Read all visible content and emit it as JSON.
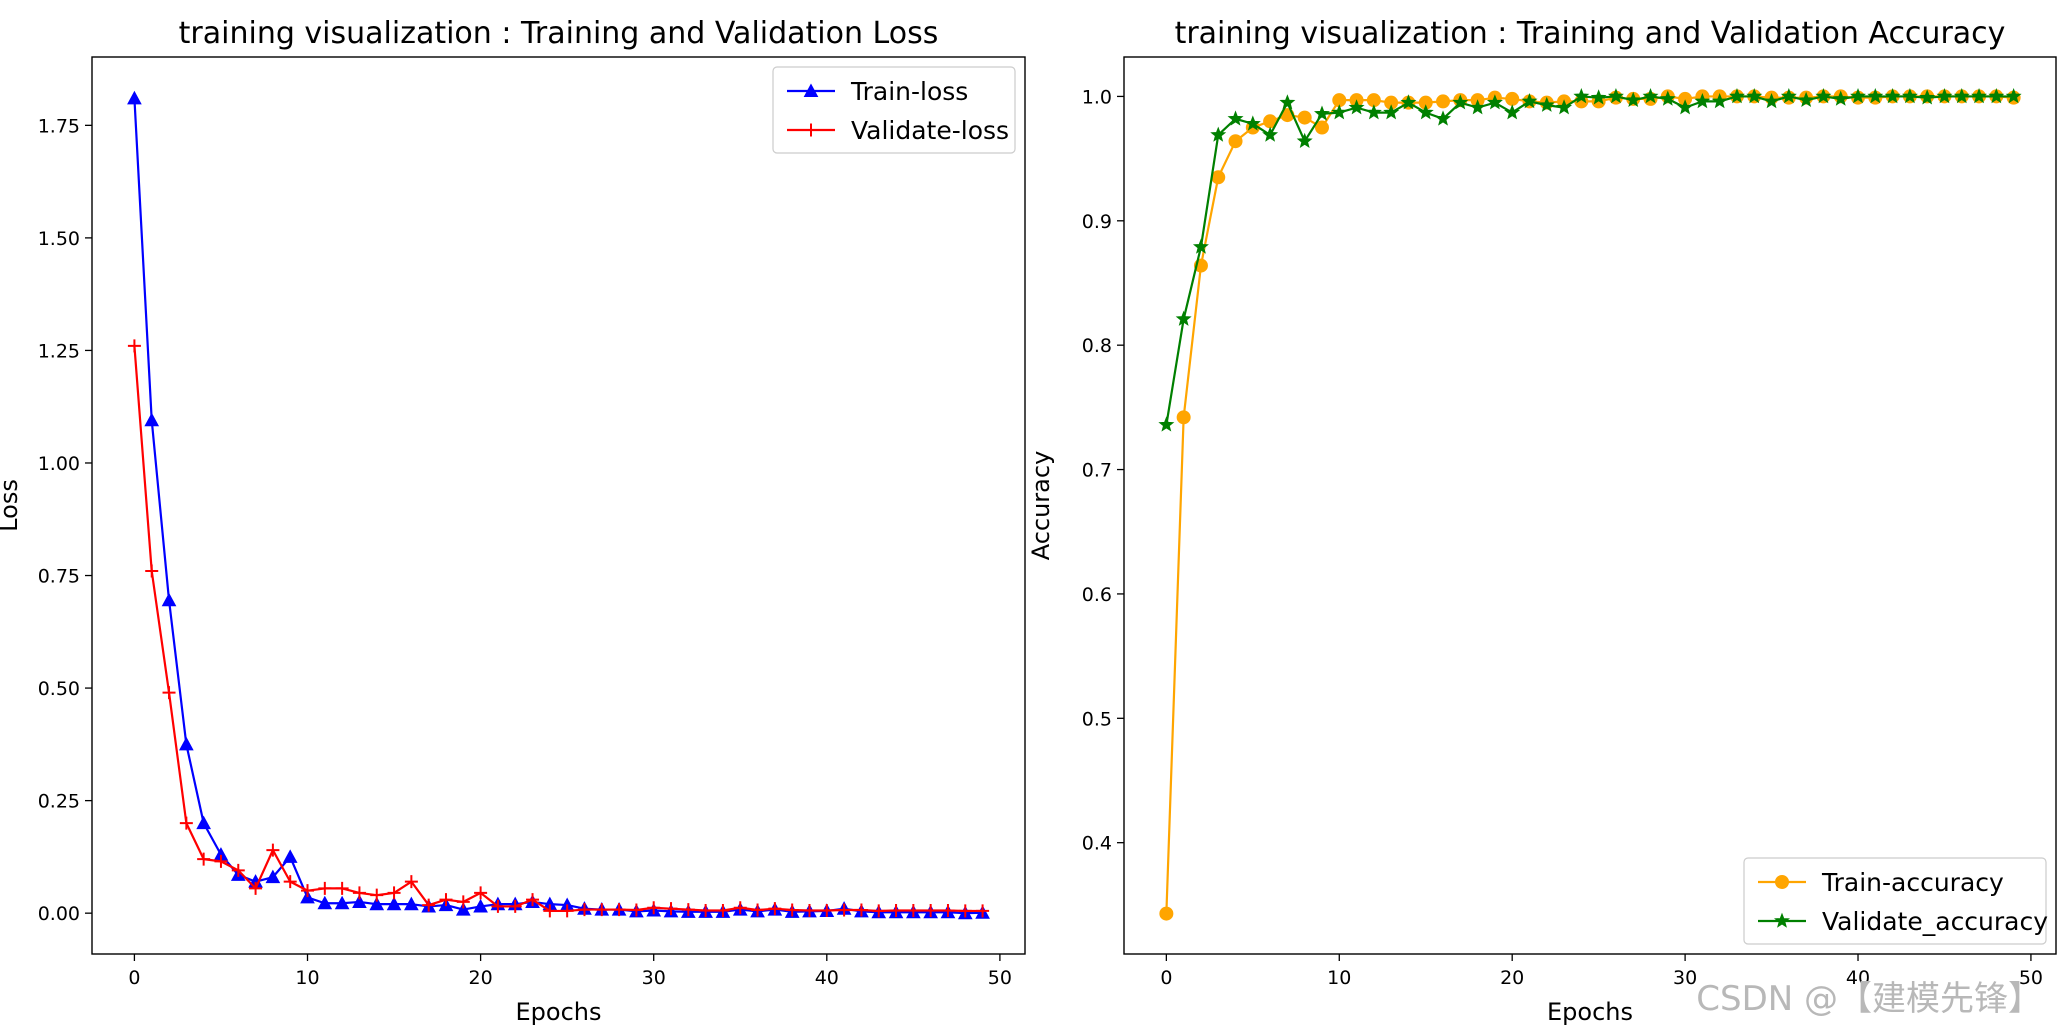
{
  "watermark": "CSDN @【建模先锋】",
  "chart_data": [
    {
      "type": "line",
      "title": "training visualization : Training and Validation Loss",
      "xlabel": "Epochs",
      "ylabel": "Loss",
      "xlim": [
        -2.45,
        51.45
      ],
      "ylim": [
        -0.0907,
        1.9018
      ],
      "xticks": [
        0,
        10,
        20,
        30,
        40,
        50
      ],
      "xtick_labels": [
        "0",
        "10",
        "20",
        "30",
        "40",
        "50"
      ],
      "yticks": [
        0.0,
        0.25,
        0.5,
        0.75,
        1.0,
        1.25,
        1.5,
        1.75
      ],
      "ytick_labels": [
        "0.00",
        "0.25",
        "0.50",
        "0.75",
        "1.00",
        "1.25",
        "1.50",
        "1.75"
      ],
      "legend_position": "top-right",
      "series": [
        {
          "name": "Train-loss",
          "color": "#0000ff",
          "marker": "triangle",
          "x": [
            0,
            1,
            2,
            3,
            4,
            5,
            6,
            7,
            8,
            9,
            10,
            11,
            12,
            13,
            14,
            15,
            16,
            17,
            18,
            19,
            20,
            21,
            22,
            23,
            24,
            25,
            26,
            27,
            28,
            29,
            30,
            31,
            32,
            33,
            34,
            35,
            36,
            37,
            38,
            39,
            40,
            41,
            42,
            43,
            44,
            45,
            46,
            47,
            48,
            49
          ],
          "values": [
            1.81,
            1.095,
            0.695,
            0.375,
            0.2,
            0.13,
            0.085,
            0.07,
            0.08,
            0.125,
            0.035,
            0.022,
            0.022,
            0.025,
            0.02,
            0.02,
            0.02,
            0.015,
            0.018,
            0.008,
            0.015,
            0.02,
            0.02,
            0.025,
            0.02,
            0.018,
            0.01,
            0.008,
            0.008,
            0.004,
            0.006,
            0.004,
            0.003,
            0.003,
            0.003,
            0.008,
            0.004,
            0.008,
            0.003,
            0.004,
            0.005,
            0.01,
            0.004,
            0.002,
            0.002,
            0.002,
            0.002,
            0.002,
            0.0,
            0.001
          ]
        },
        {
          "name": "Validate-loss",
          "color": "#ff0000",
          "marker": "plus",
          "x": [
            0,
            1,
            2,
            3,
            4,
            5,
            6,
            7,
            8,
            9,
            10,
            11,
            12,
            13,
            14,
            15,
            16,
            17,
            18,
            19,
            20,
            21,
            22,
            23,
            24,
            25,
            26,
            27,
            28,
            29,
            30,
            31,
            32,
            33,
            34,
            35,
            36,
            37,
            38,
            39,
            40,
            41,
            42,
            43,
            44,
            45,
            46,
            47,
            48,
            49
          ],
          "values": [
            1.26,
            0.76,
            0.49,
            0.2,
            0.12,
            0.115,
            0.095,
            0.055,
            0.14,
            0.07,
            0.05,
            0.055,
            0.055,
            0.045,
            0.04,
            0.045,
            0.07,
            0.018,
            0.03,
            0.025,
            0.045,
            0.015,
            0.015,
            0.03,
            0.005,
            0.005,
            0.008,
            0.008,
            0.008,
            0.007,
            0.012,
            0.01,
            0.008,
            0.006,
            0.006,
            0.012,
            0.007,
            0.01,
            0.007,
            0.006,
            0.006,
            0.007,
            0.007,
            0.005,
            0.006,
            0.006,
            0.006,
            0.006,
            0.005,
            0.005
          ]
        }
      ]
    },
    {
      "type": "line",
      "title": "training visualization : Training and Validation Accuracy",
      "xlabel": "Epochs",
      "ylabel": "Accuracy",
      "xlim": [
        -2.45,
        51.45
      ],
      "ylim": [
        0.3105,
        1.0317
      ],
      "xticks": [
        0,
        10,
        20,
        30,
        40,
        50
      ],
      "xtick_labels": [
        "0",
        "10",
        "20",
        "30",
        "40",
        "50"
      ],
      "yticks": [
        0.4,
        0.5,
        0.6,
        0.7,
        0.8,
        0.9,
        1.0
      ],
      "ytick_labels": [
        "0.4",
        "0.5",
        "0.6",
        "0.7",
        "0.8",
        "0.9",
        "1.0"
      ],
      "legend_position": "bottom-right",
      "series": [
        {
          "name": "Train-accuracy",
          "color": "#ffa500",
          "marker": "circle",
          "x": [
            0,
            1,
            2,
            3,
            4,
            5,
            6,
            7,
            8,
            9,
            10,
            11,
            12,
            13,
            14,
            15,
            16,
            17,
            18,
            19,
            20,
            21,
            22,
            23,
            24,
            25,
            26,
            27,
            28,
            29,
            30,
            31,
            32,
            33,
            34,
            35,
            36,
            37,
            38,
            39,
            40,
            41,
            42,
            43,
            44,
            45,
            46,
            47,
            48,
            49
          ],
          "values": [
            0.343,
            0.742,
            0.864,
            0.935,
            0.964,
            0.975,
            0.98,
            0.985,
            0.983,
            0.975,
            0.997,
            0.997,
            0.997,
            0.995,
            0.995,
            0.995,
            0.996,
            0.997,
            0.997,
            0.999,
            0.998,
            0.996,
            0.995,
            0.996,
            0.996,
            0.996,
            0.999,
            0.998,
            0.998,
            1.0,
            0.998,
            1.0,
            1.0,
            1.0,
            1.0,
            0.999,
            0.999,
            0.999,
            1.0,
            1.0,
            0.999,
            0.999,
            1.0,
            1.0,
            1.0,
            1.0,
            1.0,
            1.0,
            1.0,
            0.999
          ]
        },
        {
          "name": "Validate_accuracy",
          "color": "#008000",
          "marker": "star",
          "x": [
            0,
            1,
            2,
            3,
            4,
            5,
            6,
            7,
            8,
            9,
            10,
            11,
            12,
            13,
            14,
            15,
            16,
            17,
            18,
            19,
            20,
            21,
            22,
            23,
            24,
            25,
            26,
            27,
            28,
            29,
            30,
            31,
            32,
            33,
            34,
            35,
            36,
            37,
            38,
            39,
            40,
            41,
            42,
            43,
            44,
            45,
            46,
            47,
            48,
            49
          ],
          "values": [
            0.736,
            0.821,
            0.879,
            0.969,
            0.982,
            0.978,
            0.969,
            0.995,
            0.964,
            0.986,
            0.987,
            0.991,
            0.987,
            0.987,
            0.995,
            0.987,
            0.982,
            0.995,
            0.991,
            0.995,
            0.987,
            0.996,
            0.993,
            0.991,
            1.0,
            0.999,
            1.0,
            0.997,
            1.0,
            0.998,
            0.991,
            0.996,
            0.996,
            1.0,
            1.0,
            0.996,
            1.0,
            0.997,
            1.0,
            0.998,
            1.0,
            1.0,
            1.0,
            1.0,
            0.999,
            1.0,
            1.0,
            1.0,
            1.0,
            1.0
          ]
        }
      ]
    }
  ]
}
